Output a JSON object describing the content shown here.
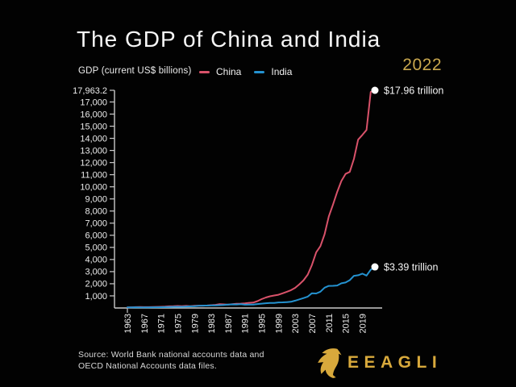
{
  "page": {
    "title": "The GDP of China and India",
    "year_label": "2022",
    "source_line1": "Source: World Bank national accounts data and",
    "source_line2": "OECD National Accounts data files.",
    "brand": "EEAGLI"
  },
  "colors": {
    "background": "#020202",
    "china": "#d9526a",
    "india": "#2492d0",
    "gold": "#d8a93c",
    "axis": "#c9c9c9",
    "text": "#f5f5f5"
  },
  "chart_data": {
    "type": "line",
    "title": "The GDP of China and India",
    "ylabel": "GDP (current US$ billions)",
    "xlabel": "",
    "grid": false,
    "legend_position": "top",
    "ylim": [
      0,
      17963.2
    ],
    "y_ticks": [
      1000,
      2000,
      3000,
      4000,
      5000,
      6000,
      7000,
      8000,
      9000,
      10000,
      11000,
      12000,
      13000,
      14000,
      15000,
      16000,
      17000,
      17963.2
    ],
    "x_tick_years": [
      1963,
      1967,
      1971,
      1975,
      1979,
      1983,
      1987,
      1991,
      1995,
      1999,
      2003,
      2007,
      2011,
      2015,
      2019
    ],
    "x": [
      1963,
      1964,
      1965,
      1966,
      1967,
      1968,
      1969,
      1970,
      1971,
      1972,
      1973,
      1974,
      1975,
      1976,
      1977,
      1978,
      1979,
      1980,
      1981,
      1982,
      1983,
      1984,
      1985,
      1986,
      1987,
      1988,
      1989,
      1990,
      1991,
      1992,
      1993,
      1994,
      1995,
      1996,
      1997,
      1998,
      1999,
      2000,
      2001,
      2002,
      2003,
      2004,
      2005,
      2006,
      2007,
      2008,
      2009,
      2010,
      2011,
      2012,
      2013,
      2014,
      2015,
      2016,
      2017,
      2018,
      2019,
      2020,
      2021,
      2022
    ],
    "series": [
      {
        "name": "China",
        "color": "#d9526a",
        "end_label": "$17.96 trillion",
        "values": [
          50.7,
          59.7,
          70.4,
          76.7,
          72.9,
          70.9,
          79.7,
          92.6,
          99.8,
          113.7,
          138.5,
          144.2,
          163.4,
          153.9,
          174.9,
          149.5,
          178.3,
          191.1,
          195.9,
          205.1,
          230.7,
          259.9,
          309.5,
          300.8,
          273.0,
          312.4,
          347.8,
          360.9,
          383.4,
          426.9,
          444.7,
          564.3,
          734.5,
          863.7,
          961.6,
          1029.0,
          1094.0,
          1211.3,
          1339.4,
          1470.6,
          1660.3,
          1955.3,
          2286.0,
          2752.1,
          3550.3,
          4594.3,
          5101.7,
          6087.2,
          7551.5,
          8532.2,
          9570.4,
          10475.7,
          11061.6,
          11233.3,
          12310.4,
          13894.8,
          14279.9,
          14687.7,
          17820.5,
          17963.2
        ]
      },
      {
        "name": "India",
        "color": "#2492d0",
        "end_label": "$3.39 trillion",
        "values": [
          48.4,
          56.5,
          59.6,
          45.9,
          50.1,
          53.1,
          58.4,
          62.4,
          67.4,
          71.5,
          85.5,
          99.5,
          98.5,
          102.7,
          121.5,
          137.3,
          153.0,
          186.3,
          193.5,
          200.7,
          218.3,
          212.2,
          232.5,
          249.0,
          279.0,
          296.6,
          296.0,
          321.0,
          270.1,
          288.2,
          279.3,
          327.3,
          360.3,
          392.9,
          415.9,
          421.4,
          458.8,
          468.4,
          485.4,
          514.9,
          607.7,
          709.1,
          820.4,
          940.3,
          1216.7,
          1198.9,
          1341.9,
          1675.6,
          1823.1,
          1827.6,
          1856.7,
          2039.1,
          2103.6,
          2294.8,
          2651.5,
          2702.9,
          2835.6,
          2671.6,
          3150.3,
          3389.7
        ]
      }
    ]
  }
}
